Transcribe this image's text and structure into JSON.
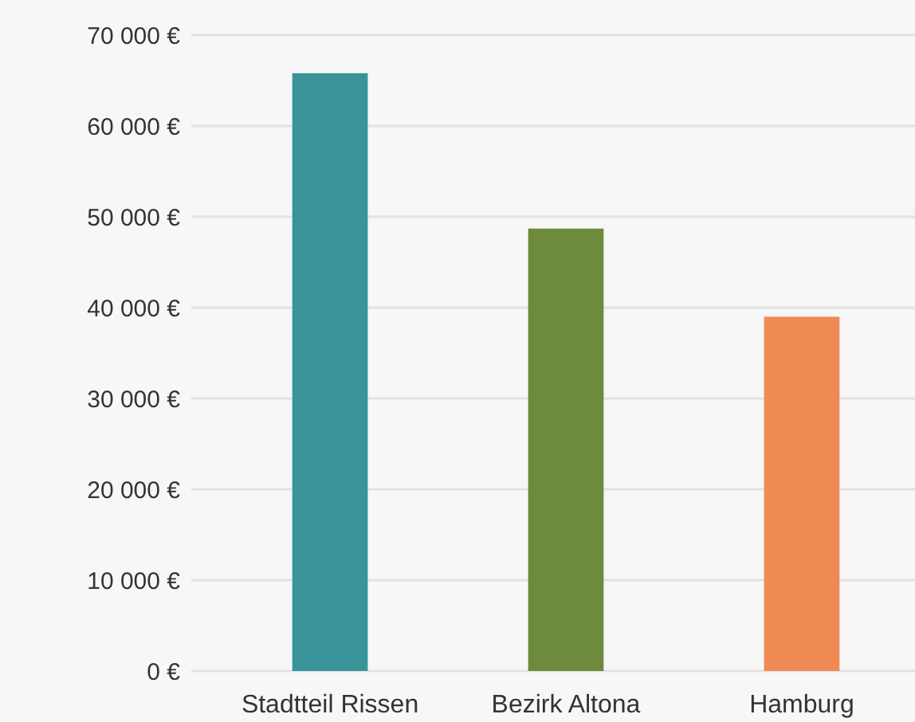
{
  "chart_data": {
    "type": "bar",
    "categories": [
      "Stadtteil Rissen",
      "Bezirk Altona",
      "Hamburg"
    ],
    "values": [
      65800,
      48700,
      39000
    ],
    "colors": [
      "#389499",
      "#6e8a3c",
      "#f08a55"
    ],
    "ylim": [
      0,
      70000
    ],
    "yticks": [
      {
        "value": 0,
        "label": "0 €"
      },
      {
        "value": 10000,
        "label": "10 000 €"
      },
      {
        "value": 20000,
        "label": "20 000 €"
      },
      {
        "value": 30000,
        "label": "30 000 €"
      },
      {
        "value": 40000,
        "label": "40 000 €"
      },
      {
        "value": 50000,
        "label": "50 000 €"
      },
      {
        "value": 60000,
        "label": "60 000 €"
      },
      {
        "value": 70000,
        "label": "70 000 €"
      }
    ],
    "grid": true
  }
}
